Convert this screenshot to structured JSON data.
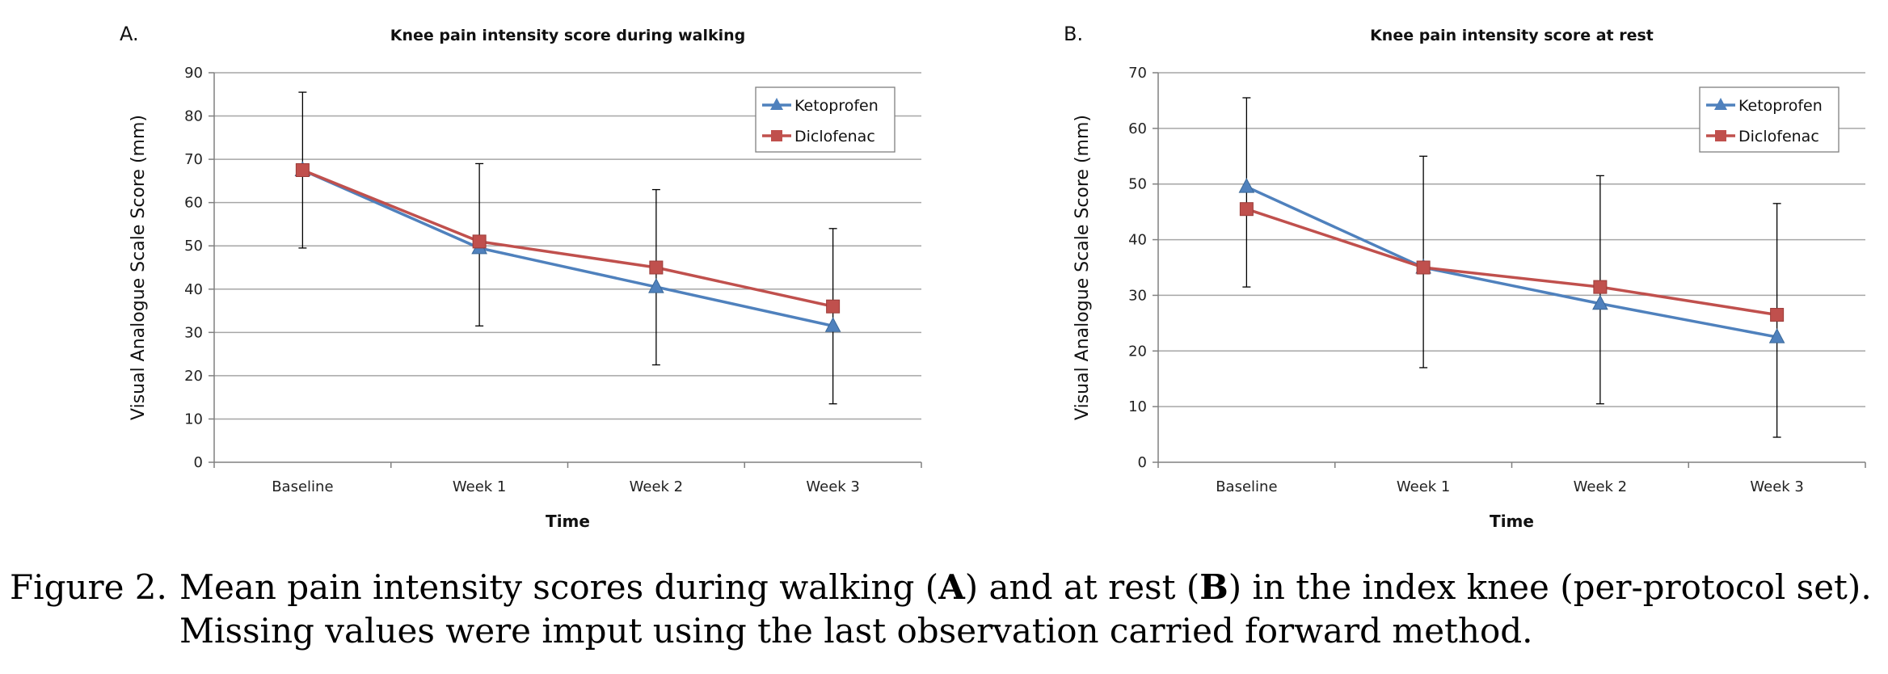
{
  "caption": {
    "label": "Figure 2.",
    "line1_a": "Mean pain intensity scores during walking (",
    "bold_a": "A",
    "line1_b": ") and at rest (",
    "bold_b": "B",
    "line1_c": ") in the index knee (per-protocol set).",
    "line2": "Missing values were imput using the last observation carried forward method."
  },
  "colors": {
    "ketoprofen": "#4F81BD",
    "diclofenac": "#C0504D",
    "grid": "#A6A6A6",
    "axis": "#808080",
    "errorbar": "#000000"
  },
  "chart_data": [
    {
      "type": "line",
      "panel_label": "A.",
      "title": "Knee pain intensity score during walking",
      "xlabel": "Time",
      "ylabel": "Visual Analogue Scale Score (mm)",
      "categories": [
        "Baseline",
        "Week 1",
        "Week 2",
        "Week 3"
      ],
      "ylim": [
        0,
        90
      ],
      "ytick_step": 10,
      "grid": true,
      "legend": "top-right",
      "series": [
        {
          "name": "Ketoprofen",
          "marker": "triangle",
          "values": [
            67.5,
            49.5,
            40.5,
            31.5
          ],
          "error_low": [
            49.5,
            31.5,
            22.5,
            13.5
          ],
          "error_high": [
            85.5,
            69,
            63,
            54
          ]
        },
        {
          "name": "Diclofenac",
          "marker": "square",
          "values": [
            67.5,
            51,
            45,
            36
          ]
        }
      ]
    },
    {
      "type": "line",
      "panel_label": "B.",
      "title": "Knee pain intensity score at rest",
      "xlabel": "Time",
      "ylabel": "Visual Analogue Scale Score (mm)",
      "categories": [
        "Baseline",
        "Week 1",
        "Week 2",
        "Week 3"
      ],
      "ylim": [
        0,
        70
      ],
      "ytick_step": 10,
      "grid": true,
      "legend": "top-right",
      "series": [
        {
          "name": "Ketoprofen",
          "marker": "triangle",
          "values": [
            49.5,
            35,
            28.5,
            22.5
          ],
          "error_low": [
            31.5,
            17,
            10.5,
            4.5
          ],
          "error_high": [
            65.5,
            55,
            51.5,
            46.5
          ]
        },
        {
          "name": "Diclofenac",
          "marker": "square",
          "values": [
            45.5,
            35,
            31.5,
            26.5
          ]
        }
      ]
    }
  ]
}
